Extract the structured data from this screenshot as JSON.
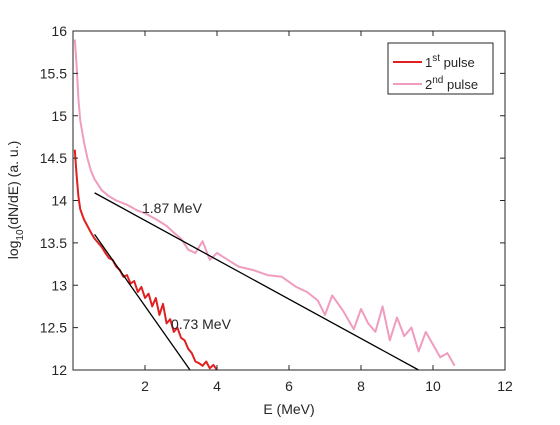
{
  "chart_data": {
    "type": "line",
    "title": "",
    "xlabel": "E (MeV)",
    "ylabel": "log10(dN/dE) (a. u.)",
    "xlim": [
      0,
      12
    ],
    "ylim": [
      12,
      16
    ],
    "xticks": [
      "2",
      "4",
      "6",
      "8",
      "10",
      "12"
    ],
    "yticks": [
      "12",
      "12.5",
      "13",
      "13.5",
      "14",
      "14.5",
      "15",
      "15.5",
      "16"
    ],
    "grid": false,
    "legend_position": "top-right",
    "series": [
      {
        "name": "1st pulse",
        "color": "#e02020",
        "points": [
          [
            0.05,
            14.6
          ],
          [
            0.1,
            14.3
          ],
          [
            0.15,
            14.05
          ],
          [
            0.2,
            13.9
          ],
          [
            0.3,
            13.78
          ],
          [
            0.4,
            13.7
          ],
          [
            0.5,
            13.62
          ],
          [
            0.6,
            13.55
          ],
          [
            0.7,
            13.5
          ],
          [
            0.8,
            13.45
          ],
          [
            0.9,
            13.38
          ],
          [
            1.0,
            13.32
          ],
          [
            1.1,
            13.3
          ],
          [
            1.2,
            13.22
          ],
          [
            1.3,
            13.18
          ],
          [
            1.4,
            13.1
          ],
          [
            1.5,
            13.12
          ],
          [
            1.6,
            13.02
          ],
          [
            1.7,
            13.05
          ],
          [
            1.8,
            12.92
          ],
          [
            1.9,
            12.98
          ],
          [
            2.0,
            12.85
          ],
          [
            2.1,
            12.9
          ],
          [
            2.2,
            12.75
          ],
          [
            2.3,
            12.85
          ],
          [
            2.4,
            12.65
          ],
          [
            2.5,
            12.78
          ],
          [
            2.6,
            12.55
          ],
          [
            2.7,
            12.6
          ],
          [
            2.8,
            12.45
          ],
          [
            2.9,
            12.5
          ],
          [
            3.0,
            12.38
          ],
          [
            3.1,
            12.35
          ],
          [
            3.2,
            12.25
          ],
          [
            3.3,
            12.2
          ],
          [
            3.4,
            12.1
          ],
          [
            3.5,
            12.08
          ],
          [
            3.6,
            12.05
          ],
          [
            3.7,
            12.1
          ],
          [
            3.8,
            12.02
          ],
          [
            3.9,
            12.06
          ],
          [
            4.0,
            12.0
          ]
        ]
      },
      {
        "name": "2nd pulse",
        "color": "#f09cc0",
        "points": [
          [
            0.05,
            15.9
          ],
          [
            0.1,
            15.6
          ],
          [
            0.15,
            15.2
          ],
          [
            0.2,
            14.95
          ],
          [
            0.3,
            14.7
          ],
          [
            0.4,
            14.5
          ],
          [
            0.5,
            14.35
          ],
          [
            0.6,
            14.25
          ],
          [
            0.8,
            14.12
          ],
          [
            1.0,
            14.05
          ],
          [
            1.2,
            14.0
          ],
          [
            1.5,
            13.95
          ],
          [
            1.8,
            13.88
          ],
          [
            2.0,
            13.85
          ],
          [
            2.3,
            13.78
          ],
          [
            2.6,
            13.7
          ],
          [
            2.8,
            13.62
          ],
          [
            3.0,
            13.55
          ],
          [
            3.2,
            13.42
          ],
          [
            3.4,
            13.38
          ],
          [
            3.6,
            13.52
          ],
          [
            3.8,
            13.3
          ],
          [
            4.0,
            13.38
          ],
          [
            4.3,
            13.3
          ],
          [
            4.6,
            13.22
          ],
          [
            5.0,
            13.18
          ],
          [
            5.4,
            13.12
          ],
          [
            5.8,
            13.1
          ],
          [
            6.2,
            12.98
          ],
          [
            6.5,
            12.92
          ],
          [
            6.8,
            12.82
          ],
          [
            7.0,
            12.65
          ],
          [
            7.2,
            12.88
          ],
          [
            7.5,
            12.7
          ],
          [
            7.8,
            12.48
          ],
          [
            8.0,
            12.72
          ],
          [
            8.2,
            12.55
          ],
          [
            8.4,
            12.45
          ],
          [
            8.6,
            12.75
          ],
          [
            8.8,
            12.35
          ],
          [
            9.0,
            12.62
          ],
          [
            9.2,
            12.4
          ],
          [
            9.4,
            12.5
          ],
          [
            9.6,
            12.22
          ],
          [
            9.8,
            12.45
          ],
          [
            10.0,
            12.3
          ],
          [
            10.2,
            12.15
          ],
          [
            10.4,
            12.2
          ],
          [
            10.6,
            12.05
          ]
        ]
      }
    ],
    "fits": [
      {
        "label": "1.87 MeV",
        "color": "#000000",
        "from": [
          0.6,
          14.09
        ],
        "to": [
          9.6,
          12.0
        ]
      },
      {
        "label": "0.73 MeV",
        "color": "#000000",
        "from": [
          0.6,
          13.6
        ],
        "to": [
          3.25,
          12.0
        ]
      }
    ]
  }
}
